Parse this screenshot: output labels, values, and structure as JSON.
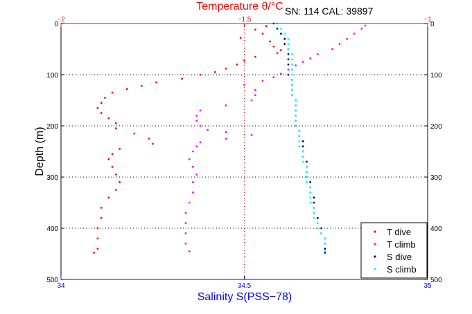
{
  "chart_data": {
    "type": "scatter",
    "title_top": "Temperature θ/°C",
    "annotation": "SN: 114  CAL: 39897",
    "ylabel": "Depth (m)",
    "xlabel_bottom": "Salinity S(PSS−78)",
    "top_axis": {
      "ticks": [
        "−2",
        "−1.5",
        "−1"
      ],
      "range": [
        -2,
        -1
      ]
    },
    "bottom_axis": {
      "ticks": [
        "34",
        "34.5",
        "35"
      ],
      "range": [
        34,
        35
      ]
    },
    "y_axis": {
      "ticks": [
        "0",
        "100",
        "200",
        "300",
        "400",
        "500"
      ],
      "range": [
        0,
        500
      ],
      "inverted": true
    },
    "grid": true,
    "legend_position": "bottom-right",
    "colors": {
      "t_dive": "#ff0000",
      "t_climb": "#ff00ff",
      "s_dive": "#00008b",
      "s_climb": "#00ffff",
      "top_axis": "#ff0000",
      "bottom_axis": "#0000ff"
    },
    "series": [
      {
        "name": "T dive",
        "axis": "top",
        "color": "#ff0000",
        "points": [
          [
            -1.44,
            5
          ],
          [
            -1.47,
            12
          ],
          [
            -1.45,
            20
          ],
          [
            -1.51,
            28
          ],
          [
            -1.43,
            35
          ],
          [
            -1.42,
            45
          ],
          [
            -1.4,
            52
          ],
          [
            -1.41,
            58
          ],
          [
            -1.47,
            65
          ],
          [
            -1.5,
            72
          ],
          [
            -1.52,
            80
          ],
          [
            -1.55,
            88
          ],
          [
            -1.58,
            95
          ],
          [
            -1.62,
            100
          ],
          [
            -1.67,
            108
          ],
          [
            -1.74,
            115
          ],
          [
            -1.78,
            122
          ],
          [
            -1.82,
            128
          ],
          [
            -1.86,
            135
          ],
          [
            -1.88,
            145
          ],
          [
            -1.89,
            155
          ],
          [
            -1.9,
            165
          ],
          [
            -1.89,
            175
          ],
          [
            -1.87,
            185
          ],
          [
            -1.85,
            195
          ],
          [
            -1.85,
            205
          ],
          [
            -1.8,
            215
          ],
          [
            -1.76,
            225
          ],
          [
            -1.75,
            235
          ],
          [
            -1.84,
            245
          ],
          [
            -1.86,
            255
          ],
          [
            -1.87,
            265
          ],
          [
            -1.86,
            280
          ],
          [
            -1.85,
            295
          ],
          [
            -1.84,
            310
          ],
          [
            -1.85,
            325
          ],
          [
            -1.87,
            340
          ],
          [
            -1.89,
            360
          ],
          [
            -1.89,
            380
          ],
          [
            -1.9,
            400
          ],
          [
            -1.9,
            420
          ],
          [
            -1.9,
            440
          ],
          [
            -1.91,
            448
          ]
        ]
      },
      {
        "name": "T climb",
        "axis": "top",
        "color": "#ff00ff",
        "points": [
          [
            -1.65,
            445
          ],
          [
            -1.66,
            430
          ],
          [
            -1.66,
            410
          ],
          [
            -1.66,
            390
          ],
          [
            -1.66,
            370
          ],
          [
            -1.65,
            350
          ],
          [
            -1.64,
            330
          ],
          [
            -1.64,
            310
          ],
          [
            -1.63,
            295
          ],
          [
            -1.64,
            280
          ],
          [
            -1.65,
            265
          ],
          [
            -1.64,
            250
          ],
          [
            -1.63,
            240
          ],
          [
            -1.62,
            232
          ],
          [
            -1.55,
            225
          ],
          [
            -1.48,
            218
          ],
          [
            -1.55,
            212
          ],
          [
            -1.6,
            208
          ],
          [
            -1.62,
            200
          ],
          [
            -1.63,
            190
          ],
          [
            -1.63,
            180
          ],
          [
            -1.62,
            170
          ],
          [
            -1.55,
            160
          ],
          [
            -1.48,
            150
          ],
          [
            -1.47,
            140
          ],
          [
            -1.47,
            130
          ],
          [
            -1.5,
            120
          ],
          [
            -1.45,
            112
          ],
          [
            -1.42,
            105
          ],
          [
            -1.4,
            98
          ],
          [
            -1.38,
            90
          ],
          [
            -1.36,
            82
          ],
          [
            -1.34,
            75
          ],
          [
            -1.32,
            68
          ],
          [
            -1.3,
            60
          ],
          [
            -1.26,
            50
          ],
          [
            -1.24,
            40
          ],
          [
            -1.22,
            30
          ],
          [
            -1.2,
            20
          ],
          [
            -1.18,
            10
          ],
          [
            -1.17,
            4
          ]
        ]
      },
      {
        "name": "S dive",
        "axis": "bottom",
        "color": "#00008b",
        "points": [
          [
            34.58,
            0
          ],
          [
            34.59,
            10
          ],
          [
            34.6,
            20
          ],
          [
            34.61,
            30
          ],
          [
            34.61,
            40
          ],
          [
            34.62,
            50
          ],
          [
            34.62,
            60
          ],
          [
            34.62,
            70
          ],
          [
            34.62,
            80
          ],
          [
            34.63,
            90
          ],
          [
            34.62,
            100
          ],
          [
            34.63,
            110
          ],
          [
            34.63,
            120
          ],
          [
            34.63,
            130
          ],
          [
            34.63,
            140
          ],
          [
            34.64,
            150
          ],
          [
            34.64,
            160
          ],
          [
            34.64,
            170
          ],
          [
            34.64,
            180
          ],
          [
            34.64,
            190
          ],
          [
            34.64,
            200
          ],
          [
            34.65,
            210
          ],
          [
            34.65,
            220
          ],
          [
            34.66,
            230
          ],
          [
            34.66,
            240
          ],
          [
            34.66,
            250
          ],
          [
            34.66,
            260
          ],
          [
            34.67,
            270
          ],
          [
            34.67,
            280
          ],
          [
            34.67,
            290
          ],
          [
            34.67,
            300
          ],
          [
            34.68,
            310
          ],
          [
            34.68,
            320
          ],
          [
            34.68,
            330
          ],
          [
            34.69,
            340
          ],
          [
            34.69,
            350
          ],
          [
            34.69,
            360
          ],
          [
            34.69,
            370
          ],
          [
            34.7,
            380
          ],
          [
            34.7,
            390
          ],
          [
            34.71,
            400
          ],
          [
            34.71,
            410
          ],
          [
            34.72,
            420
          ],
          [
            34.72,
            430
          ],
          [
            34.72,
            440
          ],
          [
            34.72,
            448
          ]
        ]
      },
      {
        "name": "S climb",
        "axis": "bottom",
        "color": "#00ffff",
        "points": [
          [
            34.72,
            445
          ],
          [
            34.72,
            430
          ],
          [
            34.72,
            420
          ],
          [
            34.71,
            410
          ],
          [
            34.7,
            400
          ],
          [
            34.7,
            390
          ],
          [
            34.69,
            380
          ],
          [
            34.69,
            370
          ],
          [
            34.69,
            360
          ],
          [
            34.68,
            350
          ],
          [
            34.68,
            340
          ],
          [
            34.68,
            330
          ],
          [
            34.68,
            320
          ],
          [
            34.67,
            310
          ],
          [
            34.67,
            300
          ],
          [
            34.67,
            290
          ],
          [
            34.67,
            280
          ],
          [
            34.66,
            270
          ],
          [
            34.66,
            260
          ],
          [
            34.66,
            250
          ],
          [
            34.65,
            240
          ],
          [
            34.65,
            230
          ],
          [
            34.65,
            220
          ],
          [
            34.65,
            210
          ],
          [
            34.64,
            200
          ],
          [
            34.64,
            190
          ],
          [
            34.64,
            180
          ],
          [
            34.64,
            170
          ],
          [
            34.64,
            160
          ],
          [
            34.64,
            150
          ],
          [
            34.63,
            140
          ],
          [
            34.63,
            130
          ],
          [
            34.63,
            120
          ],
          [
            34.63,
            110
          ],
          [
            34.63,
            100
          ],
          [
            34.63,
            90
          ],
          [
            34.63,
            80
          ],
          [
            34.63,
            70
          ],
          [
            34.63,
            60
          ],
          [
            34.62,
            50
          ],
          [
            34.62,
            40
          ],
          [
            34.62,
            30
          ],
          [
            34.61,
            20
          ],
          [
            34.6,
            10
          ],
          [
            34.59,
            0
          ]
        ]
      }
    ]
  }
}
